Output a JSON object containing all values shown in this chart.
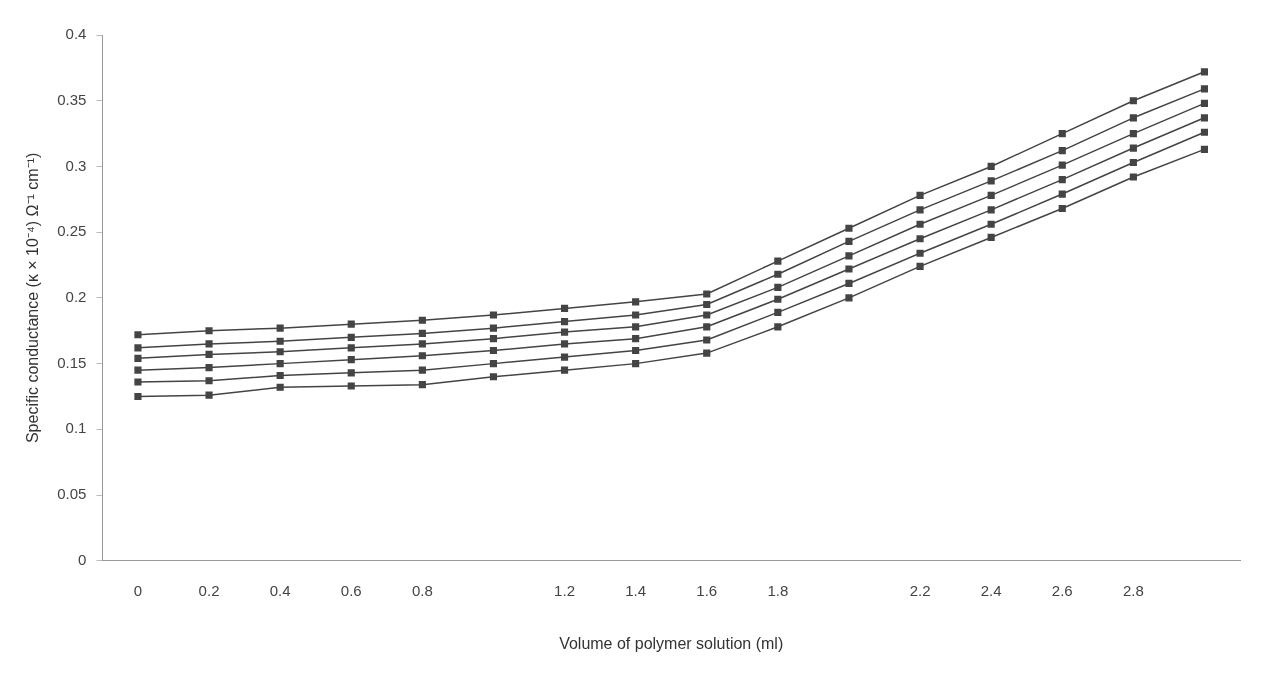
{
  "chart_data": {
    "type": "line",
    "xlabel": "Volume of polymer solution (ml)",
    "ylabel": "Specific conductance (κ × 10⁻⁴) Ω⁻¹ cm⁻¹)",
    "categories": [
      "0",
      "0.2",
      "0.4",
      "0.6",
      "0.8",
      null,
      "1.2",
      "1.4",
      "1.6",
      "1.8",
      null,
      "2.2",
      "2.4",
      "2.6",
      "2.8",
      null
    ],
    "series": [
      {
        "color": "#444444",
        "values": [
          0.172,
          0.175,
          0.177,
          0.18,
          0.183,
          0.187,
          0.192,
          0.197,
          0.203,
          0.228,
          0.253,
          0.278,
          0.3,
          0.325,
          0.35,
          0.372
        ]
      },
      {
        "color": "#444444",
        "values": [
          0.162,
          0.165,
          0.167,
          0.17,
          0.173,
          0.177,
          0.182,
          0.187,
          0.195,
          0.218,
          0.243,
          0.267,
          0.289,
          0.312,
          0.337,
          0.359
        ]
      },
      {
        "color": "#444444",
        "values": [
          0.154,
          0.157,
          0.159,
          0.162,
          0.165,
          0.169,
          0.174,
          0.178,
          0.187,
          0.208,
          0.232,
          0.256,
          0.278,
          0.301,
          0.325,
          0.348
        ]
      },
      {
        "color": "#444444",
        "values": [
          0.145,
          0.147,
          0.15,
          0.153,
          0.156,
          0.16,
          0.165,
          0.169,
          0.178,
          0.199,
          0.222,
          0.245,
          0.267,
          0.29,
          0.314,
          0.337
        ]
      },
      {
        "color": "#444444",
        "values": [
          0.136,
          0.137,
          0.141,
          0.143,
          0.145,
          0.15,
          0.155,
          0.16,
          0.168,
          0.189,
          0.211,
          0.234,
          0.256,
          0.279,
          0.303,
          0.326
        ]
      },
      {
        "color": "#444444",
        "values": [
          0.125,
          0.126,
          0.132,
          0.133,
          0.134,
          0.14,
          0.145,
          0.15,
          0.158,
          0.178,
          0.2,
          0.224,
          0.246,
          0.268,
          0.292,
          0.313
        ]
      }
    ],
    "ylim": [
      0,
      0.4
    ],
    "yticks": [
      0,
      0.05,
      0.1,
      0.15,
      0.2,
      0.25,
      0.3,
      0.35,
      0.4
    ],
    "grid": false,
    "legend": false,
    "marker": "square",
    "line_style": "solid"
  }
}
